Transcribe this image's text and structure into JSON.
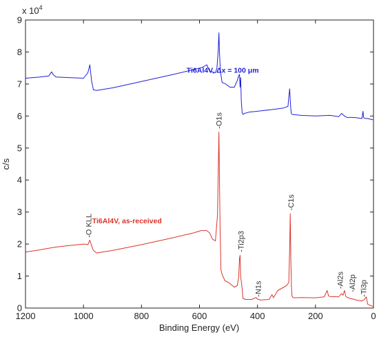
{
  "chart_data": {
    "type": "line",
    "title": "",
    "xlabel": "Binding Energy (eV)",
    "ylabel": "c/s",
    "y_multiplier": "x 10",
    "y_multiplier_exp": "4",
    "xlim": [
      1200,
      0
    ],
    "ylim": [
      0,
      9
    ],
    "x_ticks": [
      "1200",
      "1000",
      "800",
      "600",
      "400",
      "200",
      "0"
    ],
    "y_ticks": [
      "0",
      "1",
      "2",
      "3",
      "4",
      "5",
      "6",
      "7",
      "8",
      "9"
    ],
    "grid": false,
    "series": [
      {
        "name": "Ti6Al4V, Δx = 100 μm",
        "color": "#1f1fd6",
        "x": [
          1200,
          1150,
          1120,
          1110,
          1105,
          1095,
          1050,
          1000,
          985,
          978,
          972,
          966,
          955,
          900,
          800,
          700,
          620,
          590,
          575,
          565,
          545,
          540,
          536,
          533,
          531,
          528,
          522,
          510,
          495,
          480,
          470,
          465,
          462,
          460,
          458,
          456,
          453,
          450,
          445,
          430,
          400,
          350,
          310,
          295,
          292,
          289,
          287,
          285,
          283,
          280,
          270,
          250,
          200,
          150,
          120,
          110,
          100,
          90,
          80,
          60,
          40,
          36,
          34,
          30,
          20,
          10,
          2
        ],
        "y": [
          7.18,
          7.22,
          7.25,
          7.38,
          7.3,
          7.22,
          7.2,
          7.18,
          7.35,
          7.6,
          7.1,
          6.82,
          6.8,
          6.88,
          7.08,
          7.28,
          7.45,
          7.52,
          7.6,
          7.4,
          7.35,
          7.5,
          7.95,
          8.6,
          8.0,
          7.4,
          7.05,
          7.0,
          6.9,
          6.9,
          7.1,
          7.25,
          7.3,
          6.9,
          7.2,
          6.5,
          6.1,
          6.05,
          6.08,
          6.12,
          6.15,
          6.2,
          6.25,
          6.3,
          6.6,
          6.85,
          6.5,
          6.2,
          6.07,
          6.05,
          6.04,
          6.02,
          6.0,
          6.02,
          5.98,
          6.08,
          6.0,
          5.95,
          5.96,
          5.95,
          5.92,
          6.15,
          5.95,
          5.93,
          5.92,
          5.9,
          5.88
        ]
      },
      {
        "name": "Ti6Al4V, as-received",
        "color": "#d9342b",
        "x": [
          1200,
          1150,
          1100,
          1050,
          1000,
          985,
          978,
          972,
          966,
          955,
          900,
          800,
          700,
          620,
          595,
          575,
          565,
          555,
          545,
          538,
          535,
          533,
          531,
          529,
          526,
          522,
          512,
          500,
          480,
          470,
          465,
          462,
          460,
          458,
          456,
          453,
          450,
          440,
          420,
          405,
          400,
          390,
          360,
          350,
          345,
          330,
          300,
          292,
          289,
          287,
          285,
          283,
          281,
          278,
          270,
          250,
          200,
          170,
          160,
          155,
          150,
          120,
          110,
          105,
          100,
          95,
          80,
          70,
          60,
          40,
          30,
          25,
          20,
          10,
          2
        ],
        "y": [
          1.75,
          1.82,
          1.9,
          1.95,
          2.0,
          1.98,
          2.12,
          1.95,
          1.8,
          1.72,
          1.8,
          1.98,
          2.18,
          2.35,
          2.42,
          2.42,
          2.35,
          2.15,
          2.1,
          2.9,
          4.5,
          5.5,
          4.0,
          2.5,
          1.2,
          1.05,
          0.85,
          0.8,
          0.65,
          0.7,
          0.95,
          1.55,
          1.65,
          0.95,
          0.85,
          0.6,
          0.3,
          0.27,
          0.27,
          0.33,
          0.28,
          0.25,
          0.27,
          0.42,
          0.32,
          0.55,
          0.7,
          0.8,
          1.9,
          2.95,
          1.5,
          0.7,
          0.38,
          0.33,
          0.32,
          0.33,
          0.32,
          0.35,
          0.55,
          0.38,
          0.36,
          0.35,
          0.45,
          0.4,
          0.55,
          0.35,
          0.3,
          0.28,
          0.25,
          0.22,
          0.28,
          0.35,
          0.12,
          0.08,
          0.05
        ]
      }
    ],
    "series_labels": [
      {
        "text": "Ti6Al4V, Δx = 100 μm",
        "x": 520,
        "y": 7.35
      },
      {
        "text": "Ti6Al4V, as-received",
        "x": 850,
        "y": 2.65
      }
    ],
    "annotations": [
      {
        "text": "-O KLL",
        "x": 982,
        "y": 2.2
      },
      {
        "text": "-O1s",
        "x": 533,
        "y": 5.6
      },
      {
        "text": "-Ti2p3",
        "x": 458,
        "y": 1.75
      },
      {
        "text": "-C1s",
        "x": 285,
        "y": 3.05
      },
      {
        "text": "-N1s",
        "x": 398,
        "y": 0.35
      },
      {
        "text": "-Al2s",
        "x": 115,
        "y": 0.6
      },
      {
        "text": "-Al2p",
        "x": 74,
        "y": 0.5
      },
      {
        "text": "-Ti3p",
        "x": 34,
        "y": 0.35
      }
    ]
  }
}
